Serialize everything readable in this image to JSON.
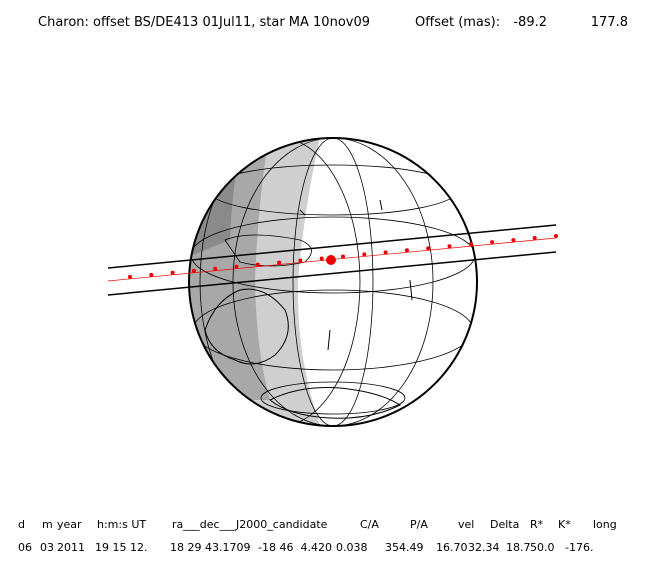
{
  "header": {
    "title": "Charon: offset BS/DE413 01Jul11, star MA 10nov09",
    "offset_label": "Offset (mas):",
    "offset": [
      "-89.2",
      "177.8"
    ]
  },
  "table": {
    "columns": [
      "d",
      "m",
      "year",
      "h:m:s UT",
      "ra___dec___J2000_candidate",
      "C/A",
      "P/A",
      "vel",
      "Delta",
      "R*",
      "K*",
      "long"
    ],
    "rows": [
      [
        "06",
        "03",
        "2011",
        "19 15 12.",
        "18 29 43.1709",
        "-18 46  4.420",
        "0.038",
        "354.49",
        "16.70",
        "32.34",
        "18.7",
        "50.0",
        "-176."
      ]
    ]
  }
}
